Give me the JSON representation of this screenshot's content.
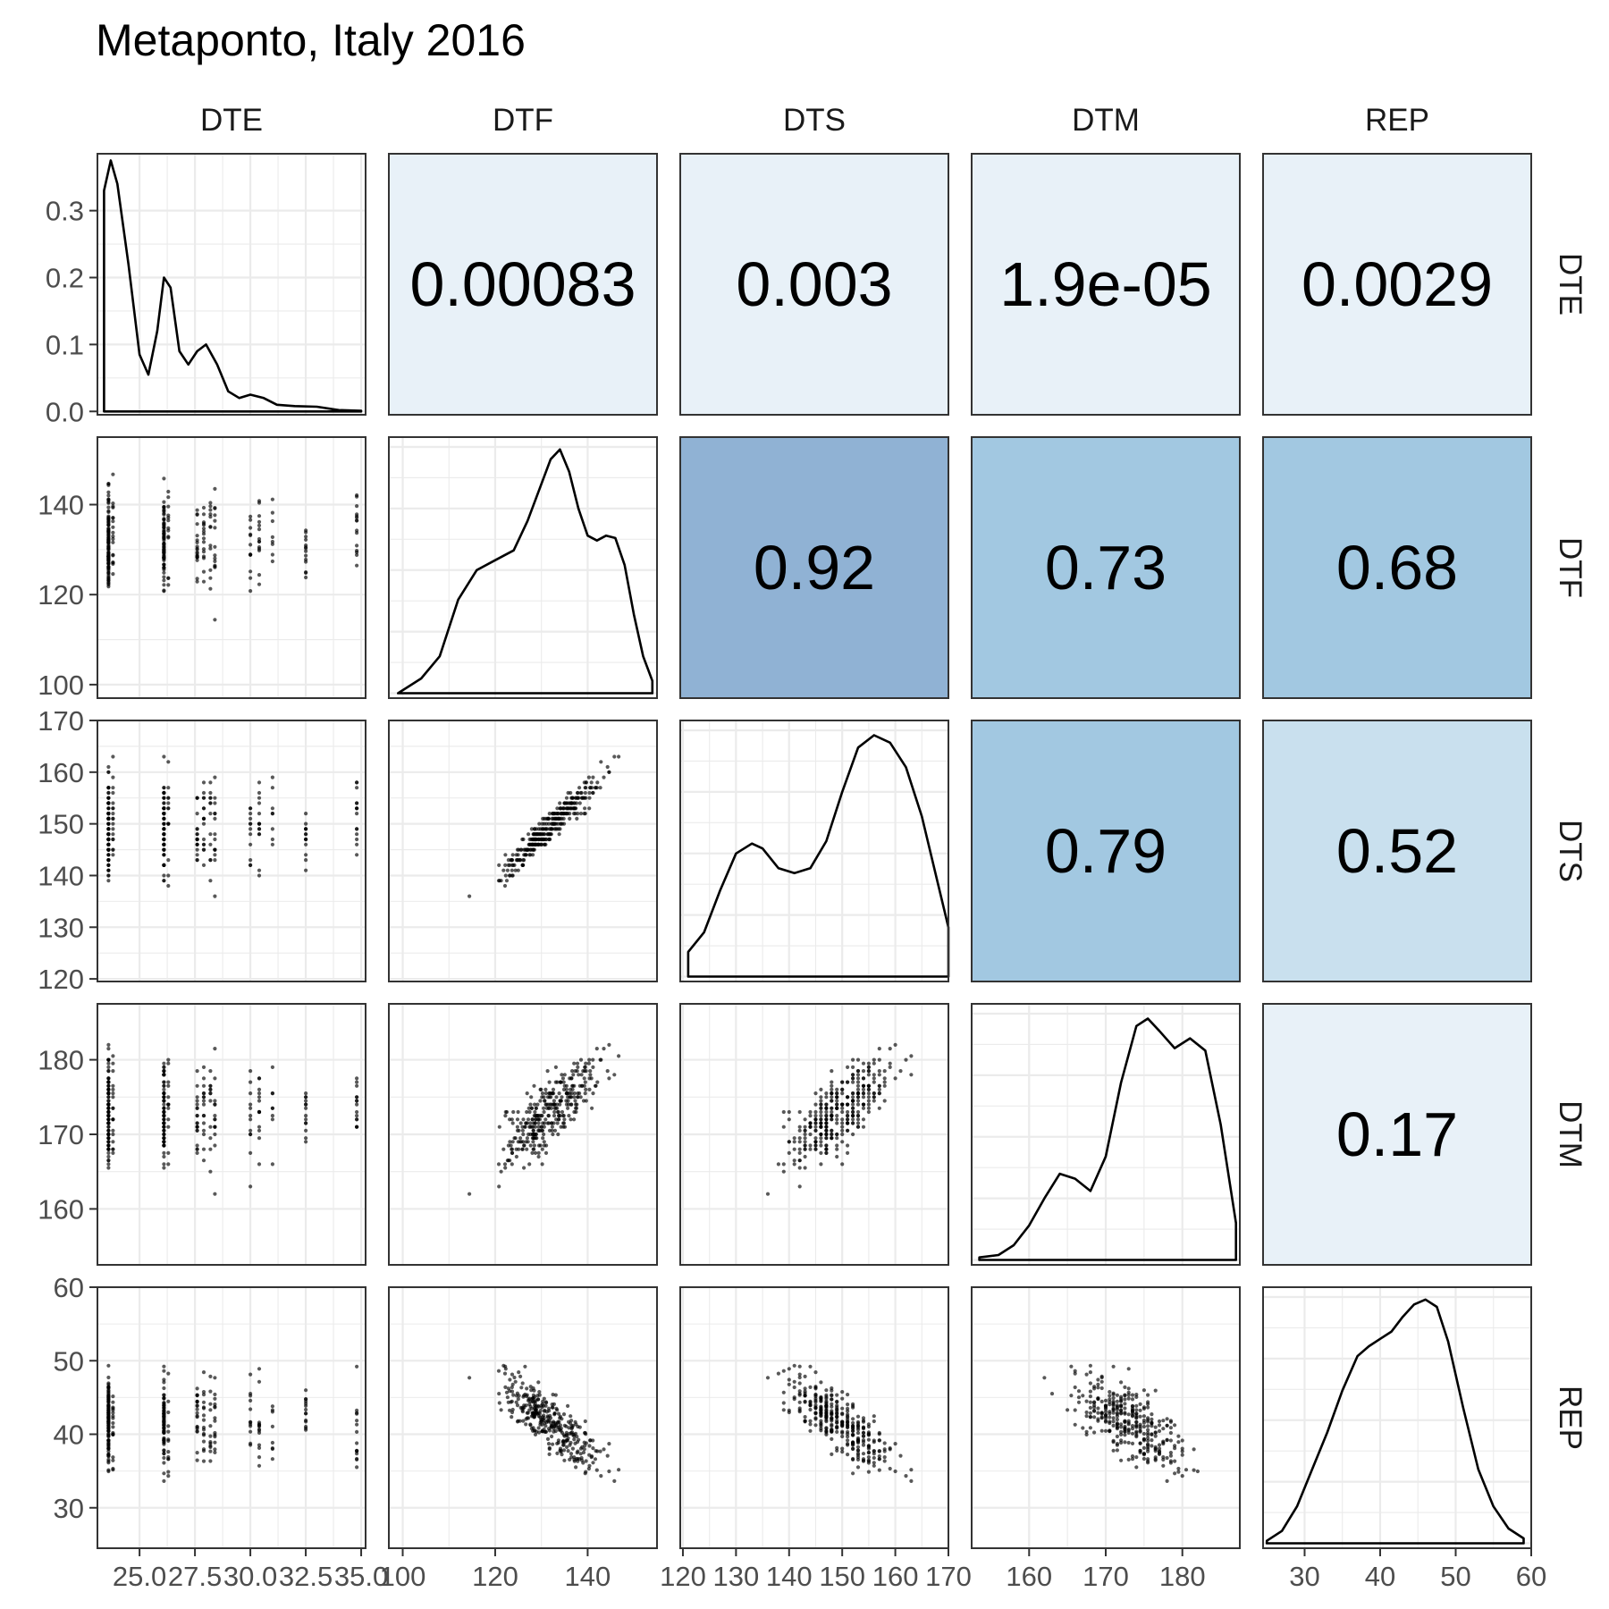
{
  "chart_data": {
    "type": "scatter-matrix",
    "title": "Metaponto, Italy 2016",
    "variables": [
      "DTE",
      "DTF",
      "DTS",
      "DTM",
      "REP"
    ],
    "axes": {
      "DTE": {
        "lim": [
          23.1,
          35.2
        ],
        "ticks": [
          25.0,
          27.5,
          30.0,
          32.5,
          35.0
        ],
        "tick_labels": [
          "25.0",
          "27.5",
          "30.0",
          "32.5",
          "35.0"
        ]
      },
      "DTF": {
        "lim": [
          97,
          155
        ],
        "ticks": [
          100,
          120,
          140
        ],
        "tick_labels": [
          "100",
          "120",
          "140"
        ]
      },
      "DTS": {
        "lim": [
          119.5,
          170
        ],
        "ticks": [
          120,
          130,
          140,
          150,
          160,
          170
        ],
        "tick_labels": [
          "120",
          "130",
          "140",
          "150",
          "160",
          "170"
        ]
      },
      "DTM": {
        "lim": [
          152.5,
          187.5
        ],
        "ticks": [
          160,
          170,
          180
        ],
        "tick_labels": [
          "160",
          "170",
          "180"
        ]
      },
      "REP": {
        "lim": [
          24.5,
          60
        ],
        "ticks": [
          30,
          40,
          50,
          60
        ],
        "tick_labels": [
          "30",
          "40",
          "50",
          "60"
        ]
      }
    },
    "density_diagonal": {
      "DTE": {
        "ylim": [
          -0.005,
          0.385
        ],
        "yticks": [
          0.0,
          0.1,
          0.2,
          0.3
        ],
        "ytick_labels": [
          "0.0",
          "0.1",
          "0.2",
          "0.3"
        ],
        "x": [
          23.4,
          23.7,
          24.0,
          24.5,
          25.0,
          25.4,
          25.8,
          26.1,
          26.4,
          26.8,
          27.2,
          27.6,
          28.0,
          28.5,
          29.0,
          29.5,
          30.0,
          30.6,
          31.2,
          32.0,
          33.0,
          34.0,
          35.0
        ],
        "y": [
          0.33,
          0.375,
          0.34,
          0.22,
          0.085,
          0.055,
          0.12,
          0.2,
          0.185,
          0.09,
          0.07,
          0.09,
          0.1,
          0.07,
          0.03,
          0.02,
          0.025,
          0.02,
          0.01,
          0.008,
          0.007,
          0.002,
          0.001
        ]
      },
      "DTF": {
        "x": [
          99,
          104,
          108,
          112,
          116,
          120,
          124,
          127,
          130,
          132,
          134,
          136,
          138,
          140,
          142,
          144,
          146,
          148,
          150,
          152,
          154
        ],
        "y": [
          0.0,
          0.06,
          0.15,
          0.38,
          0.5,
          0.54,
          0.58,
          0.7,
          0.85,
          0.95,
          0.99,
          0.9,
          0.75,
          0.64,
          0.62,
          0.64,
          0.63,
          0.52,
          0.32,
          0.15,
          0.05
        ]
      },
      "DTS": {
        "x": [
          121,
          124,
          127,
          130,
          133,
          135,
          138,
          141,
          144,
          147,
          150,
          153,
          156,
          159,
          162,
          165,
          168,
          170
        ],
        "y": [
          0.1,
          0.18,
          0.35,
          0.5,
          0.54,
          0.52,
          0.44,
          0.42,
          0.44,
          0.55,
          0.75,
          0.93,
          0.98,
          0.95,
          0.85,
          0.65,
          0.38,
          0.2
        ]
      },
      "DTM": {
        "x": [
          153.5,
          156,
          158,
          160,
          162,
          164,
          166,
          168,
          170,
          172,
          174,
          175.5,
          177,
          179,
          181,
          183,
          185,
          187
        ],
        "y": [
          0.01,
          0.02,
          0.06,
          0.14,
          0.25,
          0.35,
          0.33,
          0.28,
          0.42,
          0.72,
          0.95,
          0.98,
          0.93,
          0.86,
          0.9,
          0.85,
          0.55,
          0.15
        ]
      },
      "REP": {
        "x": [
          25,
          27,
          29,
          31,
          33,
          35,
          37,
          38.5,
          40,
          41.5,
          43,
          44.5,
          46,
          47.5,
          49,
          51,
          53,
          55,
          57,
          59
        ],
        "y": [
          0.01,
          0.05,
          0.15,
          0.3,
          0.45,
          0.62,
          0.76,
          0.8,
          0.83,
          0.86,
          0.92,
          0.97,
          0.99,
          0.96,
          0.82,
          0.55,
          0.3,
          0.15,
          0.06,
          0.02
        ]
      }
    },
    "correlations": [
      {
        "row": "DTE",
        "col": "DTF",
        "value": "0.00083",
        "fill": "#e8f1f8"
      },
      {
        "row": "DTE",
        "col": "DTS",
        "value": "0.003",
        "fill": "#e8f1f8"
      },
      {
        "row": "DTE",
        "col": "DTM",
        "value": "1.9e-05",
        "fill": "#e8f1f8"
      },
      {
        "row": "DTE",
        "col": "REP",
        "value": "0.0029",
        "fill": "#e8f1f8"
      },
      {
        "row": "DTF",
        "col": "DTS",
        "value": "0.92",
        "fill": "#90b2d4"
      },
      {
        "row": "DTF",
        "col": "DTM",
        "value": "0.73",
        "fill": "#a2c8e1"
      },
      {
        "row": "DTF",
        "col": "REP",
        "value": "0.68",
        "fill": "#a2c8e1"
      },
      {
        "row": "DTS",
        "col": "DTM",
        "value": "0.79",
        "fill": "#a2c8e1"
      },
      {
        "row": "DTS",
        "col": "REP",
        "value": "0.52",
        "fill": "#c9e0ee"
      },
      {
        "row": "DTM",
        "col": "REP",
        "value": "0.17",
        "fill": "#e8f1f8"
      }
    ],
    "grid": true,
    "colors": {
      "panel_border": "#333333",
      "grid": "#ebebeb",
      "point": "#000000",
      "strip_text": "#1a1a1a"
    }
  }
}
